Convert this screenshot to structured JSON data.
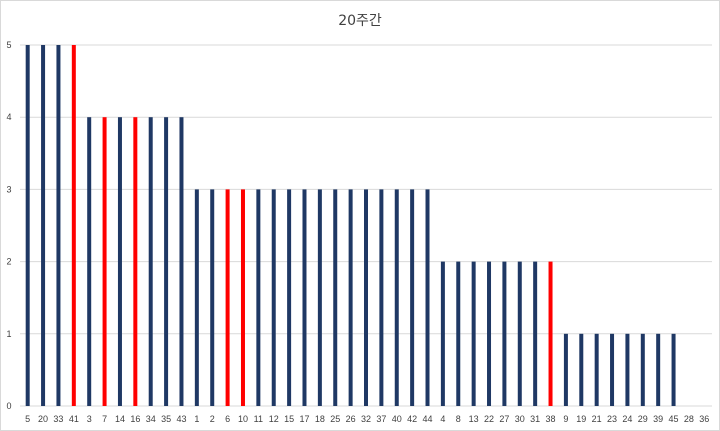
{
  "chart_data": {
    "type": "bar",
    "title": "20주간",
    "xlabel": "",
    "ylabel": "",
    "ylim": [
      0,
      5
    ],
    "yticks": [
      0,
      1,
      2,
      3,
      4,
      5
    ],
    "grid": true,
    "legend": "none",
    "colors": {
      "default": "#1f3864",
      "highlight": "#ff0000",
      "grid": "#d9d9d9"
    },
    "categories": [
      "5",
      "20",
      "33",
      "41",
      "3",
      "7",
      "14",
      "16",
      "34",
      "35",
      "43",
      "1",
      "2",
      "6",
      "10",
      "11",
      "12",
      "15",
      "17",
      "18",
      "25",
      "26",
      "32",
      "37",
      "40",
      "42",
      "44",
      "4",
      "8",
      "13",
      "22",
      "27",
      "30",
      "31",
      "38",
      "9",
      "19",
      "21",
      "23",
      "24",
      "29",
      "39",
      "45",
      "28",
      "36"
    ],
    "values": [
      5,
      5,
      5,
      5,
      4,
      4,
      4,
      4,
      4,
      4,
      4,
      3,
      3,
      3,
      3,
      3,
      3,
      3,
      3,
      3,
      3,
      3,
      3,
      3,
      3,
      3,
      3,
      2,
      2,
      2,
      2,
      2,
      2,
      2,
      2,
      1,
      1,
      1,
      1,
      1,
      1,
      1,
      1,
      0,
      0
    ],
    "highlighted": [
      "41",
      "7",
      "16",
      "6",
      "10",
      "38"
    ]
  }
}
